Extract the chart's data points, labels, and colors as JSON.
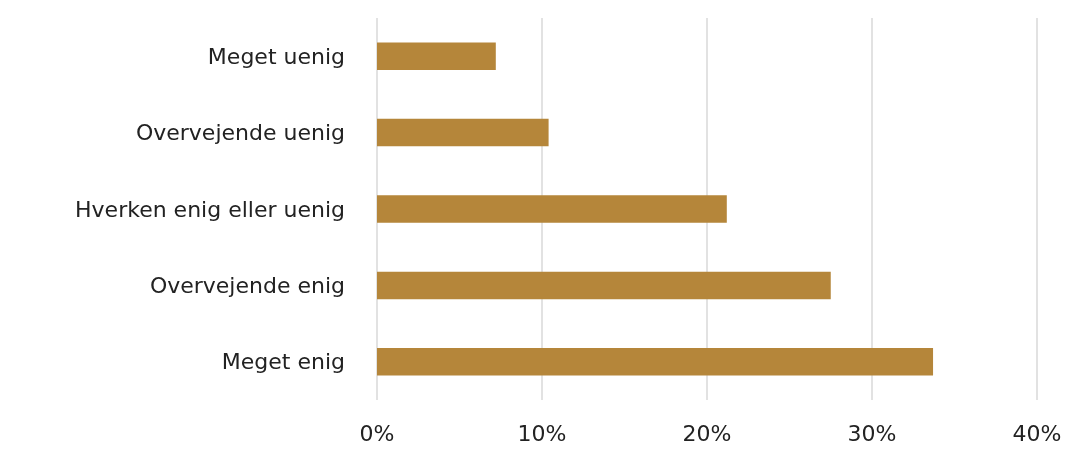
{
  "chart_data": {
    "type": "bar",
    "orientation": "horizontal",
    "categories": [
      "Meget uenig",
      "Overvejende uenig",
      "Hverken enig eller uenig",
      "Overvejende enig",
      "Meget enig"
    ],
    "values": [
      7.2,
      10.4,
      21.2,
      27.5,
      33.7
    ],
    "color": "#b5863a",
    "xlim": [
      0,
      40
    ],
    "xticks": [
      {
        "value": 0,
        "label": "0%"
      },
      {
        "value": 10,
        "label": "10%"
      },
      {
        "value": 20,
        "label": "20%"
      },
      {
        "value": 30,
        "label": "30%"
      },
      {
        "value": 40,
        "label": "40%"
      }
    ],
    "grid": "x"
  }
}
